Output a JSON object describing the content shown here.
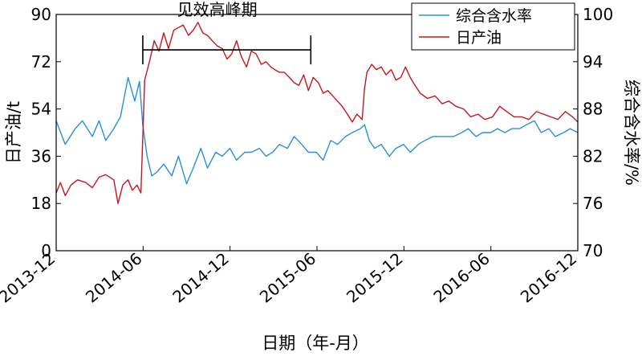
{
  "chart_data": {
    "type": "line",
    "xlabel": "日期（年-月）",
    "ylabel_left": "日产油/t",
    "ylabel_right": "综合含水率/%",
    "x_ticks": [
      "2013-12",
      "2014-06",
      "2014-12",
      "2015-06",
      "2015-12",
      "2016-06",
      "2016-12"
    ],
    "x_range": [
      "2013-12-01",
      "2016-12-01"
    ],
    "y_left_ticks": [
      0,
      18,
      36,
      54,
      72,
      90
    ],
    "y_left_range": [
      0,
      90
    ],
    "y_right_ticks": [
      70,
      76,
      82,
      88,
      94,
      100
    ],
    "y_right_range": [
      70,
      100
    ],
    "grid": false,
    "legend_position": "top-right",
    "annotation": {
      "text": "见效高峰期",
      "start": "2014-06-01",
      "end": "2015-05-20",
      "y_left": 76.5
    },
    "series": [
      {
        "name": "综合含水率",
        "axis": "right",
        "color": "#2a8fd8",
        "x": [
          "2013-12-01",
          "2013-12-20",
          "2014-01-10",
          "2014-01-25",
          "2014-02-15",
          "2014-03-01",
          "2014-03-15",
          "2014-04-01",
          "2014-04-15",
          "2014-05-01",
          "2014-05-15",
          "2014-05-25",
          "2014-06-01",
          "2014-06-10",
          "2014-06-20",
          "2014-07-01",
          "2014-07-15",
          "2014-08-01",
          "2014-08-15",
          "2014-09-01",
          "2014-09-15",
          "2014-10-01",
          "2014-10-15",
          "2014-11-01",
          "2014-11-15",
          "2014-12-01",
          "2014-12-15",
          "2015-01-01",
          "2015-01-15",
          "2015-02-01",
          "2015-02-15",
          "2015-03-01",
          "2015-03-15",
          "2015-04-01",
          "2015-04-15",
          "2015-05-01",
          "2015-05-15",
          "2015-06-01",
          "2015-06-15",
          "2015-07-01",
          "2015-07-15",
          "2015-08-01",
          "2015-08-15",
          "2015-09-01",
          "2015-09-10",
          "2015-09-20",
          "2015-10-01",
          "2015-10-15",
          "2015-11-01",
          "2015-11-15",
          "2015-12-01",
          "2015-12-15",
          "2016-01-01",
          "2016-01-15",
          "2016-02-01",
          "2016-02-15",
          "2016-03-01",
          "2016-03-15",
          "2016-04-01",
          "2016-04-15",
          "2016-05-01",
          "2016-05-15",
          "2016-06-01",
          "2016-06-15",
          "2016-07-01",
          "2016-07-15",
          "2016-08-01",
          "2016-08-15",
          "2016-09-01",
          "2016-09-15",
          "2016-10-01",
          "2016-10-15",
          "2016-11-01",
          "2016-11-15",
          "2016-12-01"
        ],
        "values": [
          86.5,
          83.5,
          85.5,
          86.5,
          84.5,
          86.5,
          84.0,
          85.5,
          87.0,
          92.0,
          89.0,
          91.5,
          86.0,
          82.0,
          79.5,
          80.0,
          81.0,
          79.5,
          82.0,
          78.5,
          80.5,
          83.0,
          80.5,
          82.5,
          82.0,
          83.0,
          81.5,
          82.5,
          82.5,
          83.0,
          82.0,
          82.5,
          83.5,
          83.0,
          84.5,
          83.5,
          82.5,
          82.5,
          81.5,
          84.0,
          83.5,
          84.5,
          85.0,
          85.5,
          86.0,
          84.0,
          83.0,
          83.5,
          82.0,
          83.0,
          83.5,
          82.5,
          83.5,
          84.0,
          84.5,
          84.5,
          84.5,
          84.5,
          85.0,
          85.5,
          84.5,
          85.0,
          85.0,
          85.5,
          85.0,
          85.5,
          85.5,
          86.0,
          86.5,
          85.0,
          85.5,
          84.5,
          85.0,
          85.5,
          85.0
        ]
      },
      {
        "name": "日产油",
        "axis": "left",
        "color": "#c8141e",
        "x": [
          "2013-12-01",
          "2013-12-10",
          "2013-12-20",
          "2014-01-01",
          "2014-01-15",
          "2014-02-01",
          "2014-02-15",
          "2014-03-01",
          "2014-03-15",
          "2014-04-01",
          "2014-04-10",
          "2014-04-20",
          "2014-05-01",
          "2014-05-10",
          "2014-05-20",
          "2014-05-28",
          "2014-06-05",
          "2014-06-15",
          "2014-06-25",
          "2014-07-05",
          "2014-07-15",
          "2014-07-25",
          "2014-08-05",
          "2014-08-15",
          "2014-08-25",
          "2014-09-05",
          "2014-09-15",
          "2014-09-25",
          "2014-10-05",
          "2014-10-15",
          "2014-10-25",
          "2014-11-05",
          "2014-11-15",
          "2014-11-25",
          "2014-12-05",
          "2014-12-15",
          "2014-12-25",
          "2015-01-05",
          "2015-01-15",
          "2015-01-25",
          "2015-02-05",
          "2015-02-15",
          "2015-02-25",
          "2015-03-05",
          "2015-03-15",
          "2015-03-25",
          "2015-04-05",
          "2015-04-15",
          "2015-04-25",
          "2015-05-05",
          "2015-05-15",
          "2015-05-25",
          "2015-06-05",
          "2015-06-15",
          "2015-06-25",
          "2015-07-05",
          "2015-07-15",
          "2015-07-25",
          "2015-08-05",
          "2015-08-15",
          "2015-08-25",
          "2015-09-05",
          "2015-09-10",
          "2015-09-15",
          "2015-09-25",
          "2015-10-05",
          "2015-10-15",
          "2015-10-25",
          "2015-11-05",
          "2015-11-15",
          "2015-11-25",
          "2015-12-05",
          "2015-12-15",
          "2015-12-25",
          "2016-01-05",
          "2016-01-20",
          "2016-02-05",
          "2016-02-20",
          "2016-03-05",
          "2016-03-20",
          "2016-04-05",
          "2016-04-20",
          "2016-05-05",
          "2016-05-20",
          "2016-06-05",
          "2016-06-20",
          "2016-07-05",
          "2016-07-20",
          "2016-08-05",
          "2016-08-20",
          "2016-09-05",
          "2016-09-20",
          "2016-10-05",
          "2016-10-20",
          "2016-11-05",
          "2016-11-20",
          "2016-12-01"
        ],
        "values": [
          22,
          26,
          21,
          25,
          27,
          26,
          24,
          28,
          29,
          27,
          18,
          25,
          27,
          23,
          25,
          22,
          65,
          72,
          80,
          76,
          83,
          77,
          84,
          85,
          86,
          82,
          84,
          87,
          83,
          82,
          80,
          78,
          77,
          73,
          75,
          80,
          74,
          70,
          76,
          75,
          71,
          72,
          70,
          69,
          68,
          68,
          66,
          64,
          63,
          67,
          61,
          66,
          64,
          60,
          61,
          59,
          57,
          55,
          52,
          49,
          52,
          50,
          62,
          68,
          71,
          69,
          70,
          67,
          69,
          65,
          66,
          70,
          66,
          63,
          60,
          58,
          59,
          56,
          57,
          55,
          54,
          51,
          52,
          50,
          51,
          55,
          53,
          51,
          51,
          50,
          53,
          52,
          51,
          50,
          53,
          51,
          49
        ]
      }
    ]
  }
}
